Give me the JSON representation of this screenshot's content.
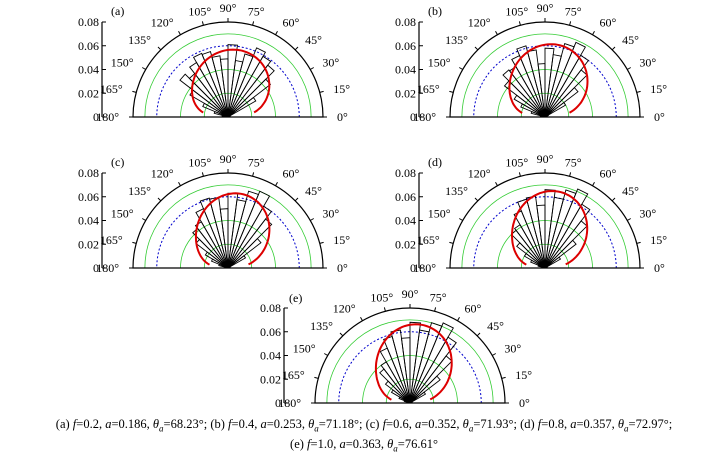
{
  "figure": {
    "ring_ticks": [
      "0.08",
      "0.06",
      "0.04",
      "0.02",
      "0"
    ],
    "angle_labels": [
      "0°",
      "15°",
      "30°",
      "45°",
      "60°",
      "75°",
      "90°",
      "105°",
      "120°",
      "135°",
      "150°",
      "165°",
      "180°"
    ],
    "colors": {
      "green_rings": "#33cc33",
      "blue_dotted_ring": "#0000cc",
      "fitted_curve": "#dd0000",
      "histogram": "#000000"
    }
  },
  "chart_data": [
    {
      "type": "polar-histogram",
      "panel_label": "(a)",
      "r_range": [
        0,
        0.08
      ],
      "r_ticks": [
        0,
        0.02,
        0.04,
        0.06,
        0.08
      ],
      "theta_range_deg": [
        0,
        180
      ],
      "bin_edges_deg": [
        0,
        7.5,
        15,
        22.5,
        30,
        37.5,
        45,
        52.5,
        60,
        67.5,
        75,
        82.5,
        90,
        97.5,
        105,
        112.5,
        120,
        127.5,
        135,
        142.5,
        150,
        157.5,
        165,
        172.5,
        180
      ],
      "histogram_values": [
        0.0,
        0.0,
        0.0,
        0.002,
        0.027,
        0.045,
        0.055,
        0.059,
        0.063,
        0.055,
        0.048,
        0.061,
        0.049,
        0.052,
        0.057,
        0.058,
        0.053,
        0.046,
        0.051,
        0.037,
        0.023,
        0.012,
        0.005,
        0.0
      ],
      "fit_f": 0.2,
      "fit_a": 0.186,
      "theta_a_deg": 68.23
    },
    {
      "type": "polar-histogram",
      "panel_label": "(b)",
      "r_range": [
        0,
        0.08
      ],
      "r_ticks": [
        0,
        0.02,
        0.04,
        0.06,
        0.08
      ],
      "theta_range_deg": [
        0,
        180
      ],
      "bin_edges_deg": [
        0,
        7.5,
        15,
        22.5,
        30,
        37.5,
        45,
        52.5,
        60,
        67.5,
        75,
        82.5,
        90,
        97.5,
        105,
        112.5,
        120,
        127.5,
        135,
        142.5,
        150,
        157.5,
        165,
        172.5,
        180
      ],
      "histogram_values": [
        0.0,
        0.0,
        0.0,
        0.003,
        0.02,
        0.035,
        0.05,
        0.06,
        0.068,
        0.064,
        0.053,
        0.058,
        0.045,
        0.057,
        0.062,
        0.056,
        0.049,
        0.05,
        0.043,
        0.03,
        0.022,
        0.012,
        0.004,
        0.0
      ],
      "fit_f": 0.4,
      "fit_a": 0.253,
      "theta_a_deg": 71.18
    },
    {
      "type": "polar-histogram",
      "panel_label": "(c)",
      "r_range": [
        0,
        0.08
      ],
      "r_ticks": [
        0,
        0.02,
        0.04,
        0.06,
        0.08
      ],
      "theta_range_deg": [
        0,
        180
      ],
      "bin_edges_deg": [
        0,
        7.5,
        15,
        22.5,
        30,
        37.5,
        45,
        52.5,
        60,
        67.5,
        75,
        82.5,
        90,
        97.5,
        105,
        112.5,
        120,
        127.5,
        135,
        142.5,
        150,
        157.5,
        165,
        172.5,
        180
      ],
      "histogram_values": [
        0.0,
        0.0,
        0.0,
        0.002,
        0.017,
        0.035,
        0.052,
        0.06,
        0.07,
        0.067,
        0.058,
        0.063,
        0.05,
        0.06,
        0.061,
        0.054,
        0.045,
        0.042,
        0.034,
        0.022,
        0.015,
        0.008,
        0.002,
        0.0
      ],
      "fit_f": 0.6,
      "fit_a": 0.352,
      "theta_a_deg": 71.93
    },
    {
      "type": "polar-histogram",
      "panel_label": "(d)",
      "r_range": [
        0,
        0.08
      ],
      "r_ticks": [
        0,
        0.02,
        0.04,
        0.06,
        0.08
      ],
      "theta_range_deg": [
        0,
        180
      ],
      "bin_edges_deg": [
        0,
        7.5,
        15,
        22.5,
        30,
        37.5,
        45,
        52.5,
        60,
        67.5,
        75,
        82.5,
        90,
        97.5,
        105,
        112.5,
        120,
        127.5,
        135,
        142.5,
        150,
        157.5,
        165,
        172.5,
        180
      ],
      "histogram_values": [
        0.0,
        0.0,
        0.0,
        0.002,
        0.015,
        0.033,
        0.05,
        0.062,
        0.072,
        0.068,
        0.06,
        0.066,
        0.053,
        0.061,
        0.06,
        0.052,
        0.042,
        0.04,
        0.03,
        0.02,
        0.013,
        0.006,
        0.002,
        0.0
      ],
      "fit_f": 0.8,
      "fit_a": 0.357,
      "theta_a_deg": 72.97
    },
    {
      "type": "polar-histogram",
      "panel_label": "(e)",
      "r_range": [
        0,
        0.08
      ],
      "r_ticks": [
        0,
        0.02,
        0.04,
        0.06,
        0.08
      ],
      "theta_range_deg": [
        0,
        180
      ],
      "bin_edges_deg": [
        0,
        7.5,
        15,
        22.5,
        30,
        37.5,
        45,
        52.5,
        60,
        67.5,
        75,
        82.5,
        90,
        97.5,
        105,
        112.5,
        120,
        127.5,
        135,
        142.5,
        150,
        157.5,
        165,
        172.5,
        180
      ],
      "histogram_values": [
        0.0,
        0.0,
        0.0,
        0.002,
        0.015,
        0.032,
        0.05,
        0.064,
        0.073,
        0.07,
        0.062,
        0.068,
        0.055,
        0.062,
        0.058,
        0.05,
        0.04,
        0.036,
        0.026,
        0.018,
        0.01,
        0.005,
        0.001,
        0.0
      ],
      "fit_f": 1.0,
      "fit_a": 0.363,
      "theta_a_deg": 76.61
    }
  ],
  "caption": {
    "line1": [
      {
        "t": "(a) ",
        "i": false
      },
      {
        "t": "f",
        "i": true
      },
      {
        "t": "=0.2, ",
        "i": false
      },
      {
        "t": "a",
        "i": true
      },
      {
        "t": "=0.186, ",
        "i": false
      },
      {
        "t": "θ",
        "i": true
      },
      {
        "t": "a",
        "i": true,
        "sub": true
      },
      {
        "t": "=68.23°; ",
        "i": false
      },
      {
        "t": "(b) ",
        "i": false
      },
      {
        "t": "f",
        "i": true
      },
      {
        "t": "=0.4, ",
        "i": false
      },
      {
        "t": "a",
        "i": true
      },
      {
        "t": "=0.253, ",
        "i": false
      },
      {
        "t": "θ",
        "i": true
      },
      {
        "t": "a",
        "i": true,
        "sub": true
      },
      {
        "t": "=71.18°; ",
        "i": false
      },
      {
        "t": "(c) ",
        "i": false
      },
      {
        "t": "f",
        "i": true
      },
      {
        "t": "=0.6, ",
        "i": false
      },
      {
        "t": "a",
        "i": true
      },
      {
        "t": "=0.352, ",
        "i": false
      },
      {
        "t": "θ",
        "i": true
      },
      {
        "t": "a",
        "i": true,
        "sub": true
      },
      {
        "t": "=71.93°; ",
        "i": false
      },
      {
        "t": "(d) ",
        "i": false
      },
      {
        "t": "f",
        "i": true
      },
      {
        "t": "=0.8, ",
        "i": false
      },
      {
        "t": "a",
        "i": true
      },
      {
        "t": "=0.357, ",
        "i": false
      },
      {
        "t": "θ",
        "i": true
      },
      {
        "t": "a",
        "i": true,
        "sub": true
      },
      {
        "t": "=72.97°;",
        "i": false
      }
    ],
    "line2": [
      {
        "t": "(e) ",
        "i": false
      },
      {
        "t": "f",
        "i": true
      },
      {
        "t": "=1.0, ",
        "i": false
      },
      {
        "t": "a",
        "i": true
      },
      {
        "t": "=0.363, ",
        "i": false
      },
      {
        "t": "θ",
        "i": true
      },
      {
        "t": "a",
        "i": true,
        "sub": true
      },
      {
        "t": "=76.61°",
        "i": false
      }
    ]
  }
}
